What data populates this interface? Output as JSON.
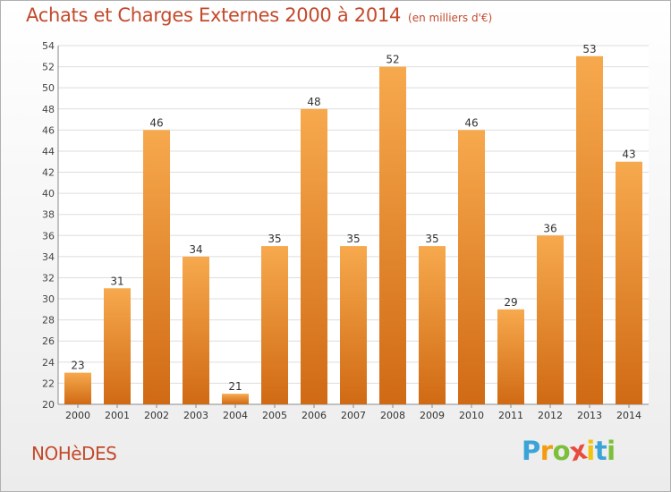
{
  "header": {
    "title": "Achats et Charges Externes 2000 à 2014",
    "subtitle": "(en milliers d'€)"
  },
  "footer": {
    "commune": "NOHèDES",
    "logo": {
      "text": "Proxiti",
      "letter_colors": [
        "#3aa3d8",
        "#f39c12",
        "#7cbf3a",
        "#e74c3c",
        "#f1c40f",
        "#3aa3d8",
        "#7cbf3a"
      ]
    }
  },
  "chart_data": {
    "type": "bar",
    "categories": [
      "2000",
      "2001",
      "2002",
      "2003",
      "2004",
      "2005",
      "2006",
      "2007",
      "2008",
      "2009",
      "2010",
      "2011",
      "2012",
      "2013",
      "2014"
    ],
    "values": [
      23,
      31,
      46,
      34,
      21,
      35,
      48,
      35,
      52,
      35,
      46,
      29,
      36,
      53,
      43
    ],
    "ylim": [
      20,
      54
    ],
    "yticks": [
      20,
      22,
      24,
      26,
      28,
      30,
      32,
      34,
      36,
      38,
      40,
      42,
      44,
      46,
      48,
      50,
      52,
      54
    ],
    "grid": true,
    "colors": {
      "bar_top": "#f7a94d",
      "bar_bottom": "#d06a14",
      "grid": "#dddddd",
      "axis": "#888888"
    }
  }
}
